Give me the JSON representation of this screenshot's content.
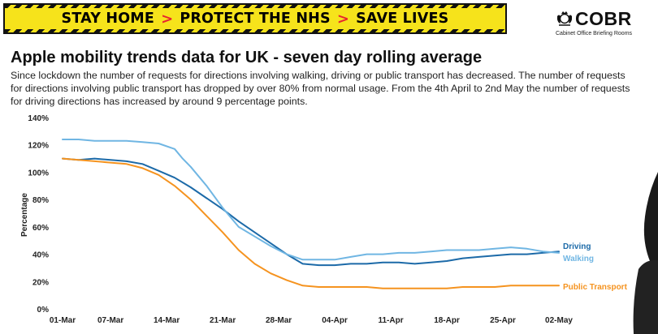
{
  "banner": {
    "items": [
      "STAY HOME",
      "PROTECT THE NHS",
      "SAVE LIVES"
    ],
    "separator": ">"
  },
  "logo": {
    "name": "COBR",
    "subtitle": "Cabinet Office Briefing Rooms",
    "icon": "royal-crest-icon"
  },
  "title": "Apple mobility trends data for UK - seven day rolling average",
  "description": "Since lockdown the number of requests for directions involving walking, driving or public transport has decreased. The number of requests for directions involving public transport has dropped by over 80% from normal usage. From the 4th April to 2nd May the number of requests for driving directions has increased by around 9 percentage points.",
  "colors": {
    "banner_bg": "#f6e31b",
    "banner_chevron": "#e8262f",
    "driving": "#1c6aa8",
    "walking": "#70b6e3",
    "public_transport": "#f5931f"
  },
  "chart_data": {
    "type": "line",
    "title": "",
    "xlabel": "",
    "ylabel": "Percentage",
    "ylim": [
      0,
      140
    ],
    "y_ticks": [
      0,
      20,
      40,
      60,
      80,
      100,
      120,
      140
    ],
    "y_tick_labels": [
      "0%",
      "20%",
      "40%",
      "60%",
      "80%",
      "100%",
      "120%",
      "140%"
    ],
    "x_tick_labels": [
      "01-Mar",
      "07-Mar",
      "14-Mar",
      "21-Mar",
      "28-Mar",
      "04-Apr",
      "11-Apr",
      "18-Apr",
      "25-Apr",
      "02-May"
    ],
    "x_tick_days": [
      0,
      6,
      13,
      20,
      27,
      34,
      41,
      48,
      55,
      62
    ],
    "x_days_max": 62,
    "grid": false,
    "legend": "inline labels at right end of lines",
    "series": [
      {
        "name": "Driving",
        "color": "#1c6aa8",
        "x": [
          0,
          2,
          4,
          6,
          8,
          10,
          12,
          14,
          16,
          18,
          20,
          22,
          24,
          26,
          28,
          30,
          32,
          34,
          36,
          38,
          40,
          42,
          44,
          46,
          48,
          50,
          52,
          54,
          56,
          58,
          60,
          62
        ],
        "values": [
          110,
          109,
          110,
          109,
          108,
          106,
          101,
          96,
          89,
          81,
          73,
          64,
          56,
          48,
          40,
          33,
          32,
          32,
          33,
          33,
          34,
          34,
          33,
          34,
          35,
          37,
          38,
          39,
          40,
          40,
          41,
          42
        ]
      },
      {
        "name": "Walking",
        "color": "#70b6e3",
        "x": [
          0,
          2,
          4,
          6,
          8,
          10,
          12,
          14,
          15,
          16,
          18,
          20,
          22,
          24,
          26,
          28,
          30,
          32,
          34,
          36,
          38,
          40,
          42,
          44,
          46,
          48,
          50,
          52,
          54,
          56,
          58,
          60,
          62
        ],
        "values": [
          124,
          124,
          123,
          123,
          123,
          122,
          121,
          117,
          110,
          104,
          90,
          74,
          60,
          53,
          46,
          40,
          36,
          36,
          36,
          38,
          40,
          40,
          41,
          41,
          42,
          43,
          43,
          43,
          44,
          45,
          44,
          42,
          41
        ]
      },
      {
        "name": "Public Transport",
        "color": "#f5931f",
        "x": [
          0,
          2,
          4,
          6,
          8,
          10,
          12,
          14,
          16,
          18,
          20,
          22,
          24,
          26,
          28,
          30,
          32,
          34,
          36,
          38,
          40,
          42,
          44,
          46,
          48,
          50,
          52,
          54,
          56,
          58,
          60,
          62
        ],
        "values": [
          110,
          109,
          108,
          107,
          106,
          103,
          98,
          90,
          80,
          68,
          56,
          43,
          33,
          26,
          21,
          17,
          16,
          16,
          16,
          16,
          15,
          15,
          15,
          15,
          15,
          16,
          16,
          16,
          17,
          17,
          17,
          17
        ]
      }
    ]
  }
}
